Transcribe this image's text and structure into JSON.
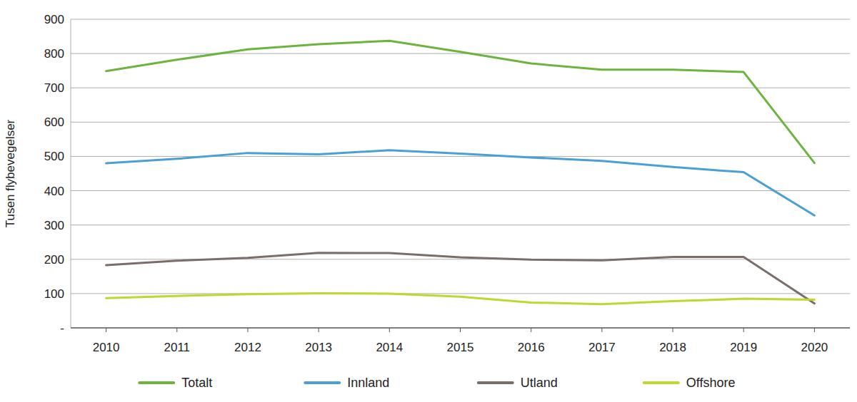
{
  "chart_data": {
    "type": "line",
    "y_label": "Tusen flybevegelser",
    "categories": [
      "2010",
      "2011",
      "2012",
      "2013",
      "2014",
      "2015",
      "2016",
      "2017",
      "2018",
      "2019",
      "2020"
    ],
    "series": [
      {
        "name": "Totalt",
        "color": "#6db33f",
        "values": [
          749,
          782,
          812,
          827,
          837,
          805,
          771,
          753,
          753,
          746,
          481
        ]
      },
      {
        "name": "Innland",
        "color": "#4a9fd5",
        "values": [
          480,
          493,
          510,
          506,
          518,
          508,
          497,
          487,
          469,
          454,
          328
        ]
      },
      {
        "name": "Utland",
        "color": "#7a6e6a",
        "values": [
          183,
          196,
          204,
          219,
          218,
          206,
          199,
          197,
          207,
          207,
          71
        ]
      },
      {
        "name": "Offshore",
        "color": "#bfd730",
        "values": [
          87,
          93,
          98,
          101,
          100,
          91,
          74,
          69,
          78,
          85,
          82
        ]
      }
    ],
    "ylim": [
      0,
      900
    ],
    "yticks": [
      {
        "value": 0,
        "label": "-"
      },
      100,
      200,
      300,
      400,
      500,
      600,
      700,
      800,
      900
    ],
    "grid": true,
    "legend": "bottom"
  }
}
